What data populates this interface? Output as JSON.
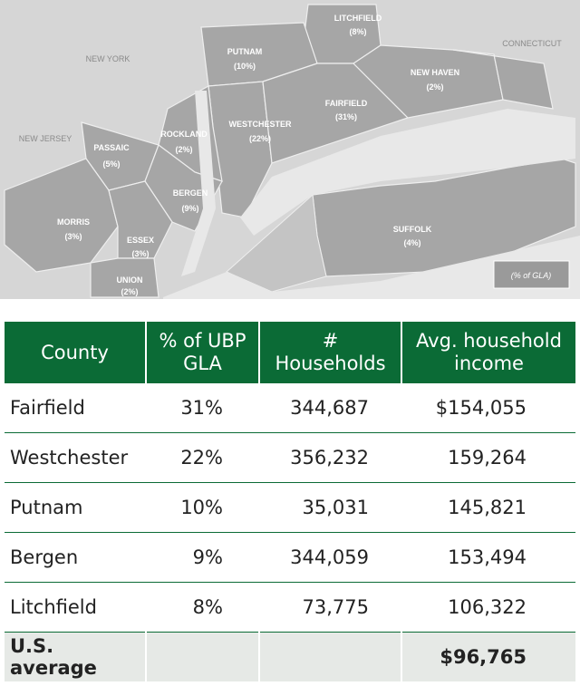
{
  "map": {
    "states": [
      "NEW YORK",
      "NEW JERSEY",
      "CONNECTICUT"
    ],
    "counties": [
      {
        "name": "LITCHFIELD",
        "share": "(8%)"
      },
      {
        "name": "PUTNAM",
        "share": "(10%)"
      },
      {
        "name": "NEW HAVEN",
        "share": "(2%)"
      },
      {
        "name": "FAIRFIELD",
        "share": "(31%)"
      },
      {
        "name": "WESTCHESTER",
        "share": "(22%)"
      },
      {
        "name": "ROCKLAND",
        "share": "(2%)"
      },
      {
        "name": "PASSAIC",
        "share": "(5%)"
      },
      {
        "name": "BERGEN",
        "share": "(9%)"
      },
      {
        "name": "MORRIS",
        "share": "(3%)"
      },
      {
        "name": "ESSEX",
        "share": "(3%)"
      },
      {
        "name": "SUFFOLK",
        "share": "(4%)"
      },
      {
        "name": "UNION",
        "share": "(2%)"
      }
    ],
    "legend": "(% of GLA)"
  },
  "table": {
    "header": [
      "County",
      "% of UBP GLA",
      "# Households",
      "Avg. household income"
    ],
    "rows": [
      [
        "Fairfield",
        "31%",
        "344,687",
        "$154,055"
      ],
      [
        "Westchester",
        "22%",
        "356,232",
        "159,264"
      ],
      [
        "Putnam",
        "10%",
        "35,031",
        "145,821"
      ],
      [
        "Bergen",
        "9%",
        "344,059",
        "153,494"
      ],
      [
        "Litchfield",
        "8%",
        "73,775",
        "106,322"
      ]
    ],
    "footer": [
      "U.S. average",
      "",
      "",
      "$96,765"
    ]
  }
}
